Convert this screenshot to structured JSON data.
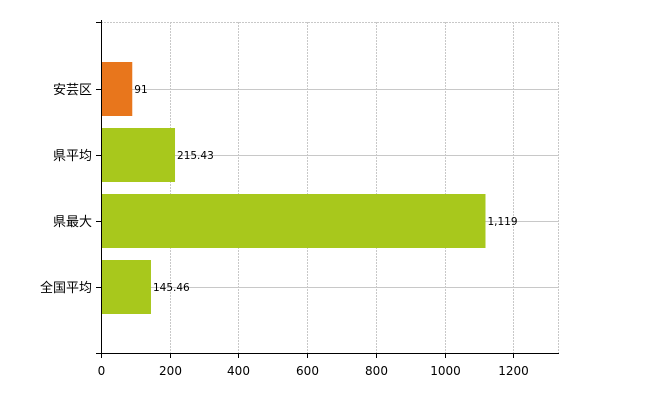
{
  "chart_data": {
    "type": "bar",
    "orientation": "horizontal",
    "categories": [
      "安芸区",
      "県平均",
      "県最大",
      "全国平均"
    ],
    "values": [
      91,
      215.43,
      1119,
      145.46
    ],
    "data_labels": [
      "91",
      "215.43",
      "1,119",
      "145.46"
    ],
    "bar_colors": [
      "#e8761c",
      "#a8c81c",
      "#a8c81c",
      "#a8c81c"
    ],
    "xlim": [
      0,
      1330
    ],
    "x_ticks": [
      0,
      200,
      400,
      600,
      800,
      1000,
      1200
    ],
    "x_tick_labels": [
      "0",
      "200",
      "400",
      "600",
      "800",
      "1000",
      "1200"
    ],
    "grid": "vertical dashed",
    "title": "",
    "xlabel": "",
    "ylabel": "",
    "legend": "none"
  }
}
